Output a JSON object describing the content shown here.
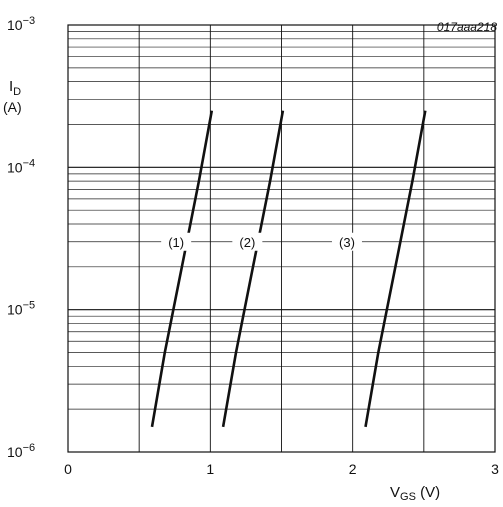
{
  "chart_data": {
    "type": "line",
    "figure_id": "017aaa218",
    "ylabel": "I",
    "ylabel_sub": "D",
    "ylabel_unit": "(A)",
    "xlabel": "V",
    "xlabel_sub": "GS",
    "xlabel_unit": " (V)",
    "xlim": [
      0,
      3
    ],
    "ylim": [
      1e-06,
      0.001
    ],
    "y_scale": "log",
    "x_ticks": [
      {
        "value": 0,
        "label": "0"
      },
      {
        "value": 1,
        "label": "1"
      },
      {
        "value": 2,
        "label": "2"
      },
      {
        "value": 3,
        "label": "3"
      }
    ],
    "y_ticks": [
      {
        "value": 1e-06,
        "base": "10",
        "exp": "−6"
      },
      {
        "value": 1e-05,
        "base": "10",
        "exp": "−5"
      },
      {
        "value": 0.0001,
        "base": "10",
        "exp": "−4"
      },
      {
        "value": 0.001,
        "base": "10",
        "exp": "−3"
      }
    ],
    "grid": true,
    "series": [
      {
        "name": "(1)",
        "label_at": [
          0.76,
          3e-05
        ],
        "x": [
          0.59,
          0.68,
          0.8,
          0.92,
          1.01
        ],
        "y": [
          1.5e-06,
          5e-06,
          2e-05,
          8e-05,
          0.00025
        ]
      },
      {
        "name": "(2)",
        "label_at": [
          1.26,
          3e-05
        ],
        "x": [
          1.09,
          1.18,
          1.3,
          1.42,
          1.51
        ],
        "y": [
          1.5e-06,
          5e-06,
          2e-05,
          8e-05,
          0.00025
        ]
      },
      {
        "name": "(3)",
        "label_at": [
          1.96,
          3e-05
        ],
        "x": [
          2.09,
          2.18,
          2.3,
          2.42,
          2.51
        ],
        "y": [
          1.5e-06,
          5e-06,
          2e-05,
          8e-05,
          0.00025
        ]
      }
    ]
  }
}
